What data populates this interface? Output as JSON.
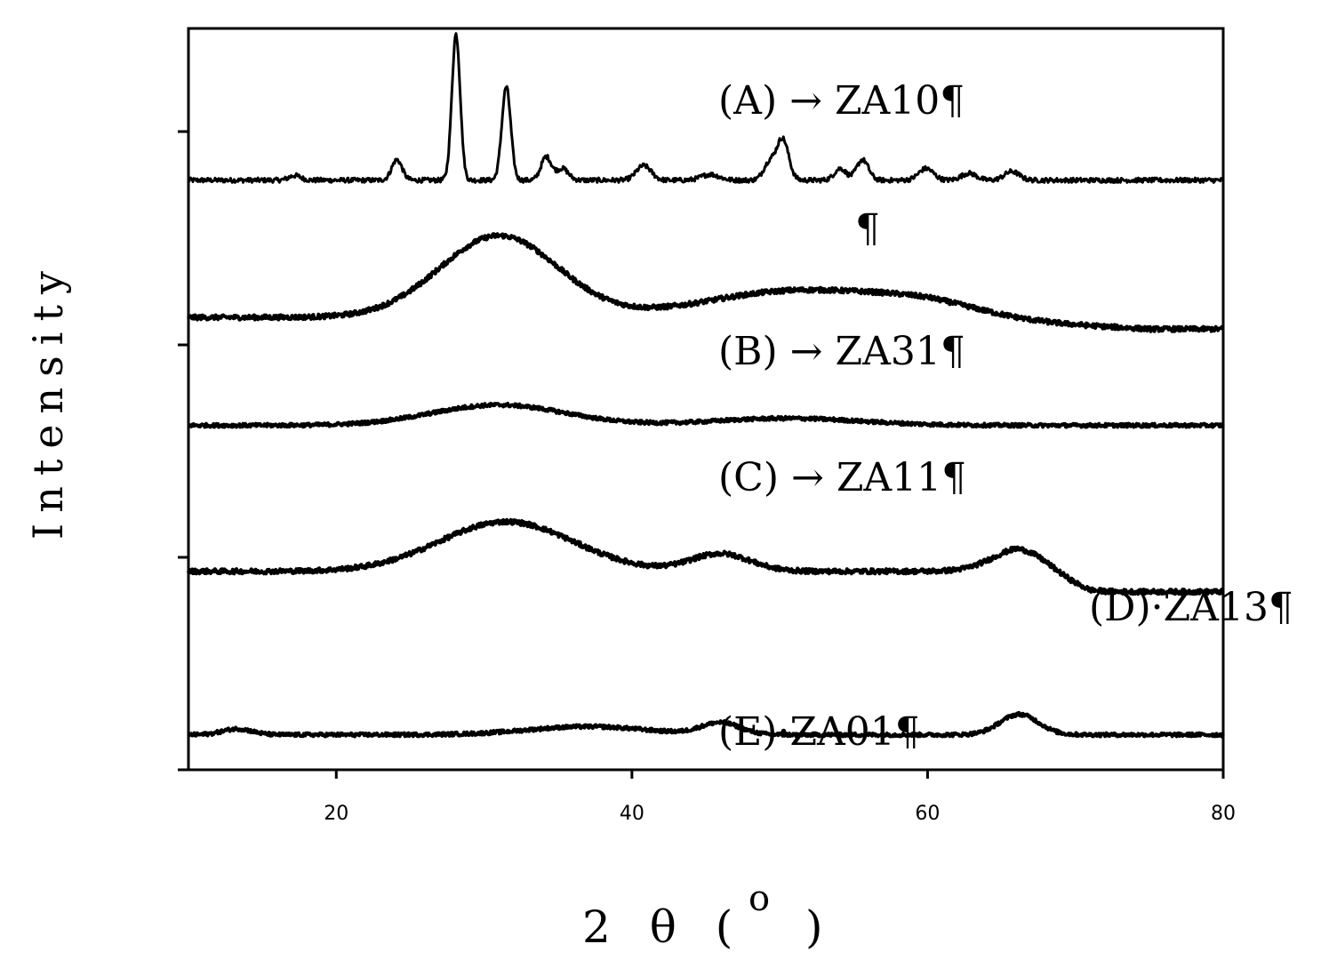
{
  "chart_data": {
    "type": "line",
    "title": "",
    "xlabel": "2 θ (",
    "xlabel_degree": "o",
    "xlabel_close": ")",
    "ylabel": "Intensity",
    "xlim": [
      10,
      80
    ],
    "xticks": [
      20,
      40,
      60,
      80
    ],
    "yticks_labeled": false,
    "grid": false,
    "series": [
      {
        "name": "(A) → ZA10¶",
        "baseline": 0.29,
        "noise": 0.004,
        "peaks": [
          {
            "x": 17.2,
            "h": 0.008,
            "w": 0.4
          },
          {
            "x": 24.1,
            "h": 0.035,
            "w": 0.35
          },
          {
            "x": 28.1,
            "h": 0.25,
            "w": 0.28
          },
          {
            "x": 31.5,
            "h": 0.16,
            "w": 0.3
          },
          {
            "x": 34.2,
            "h": 0.04,
            "w": 0.35
          },
          {
            "x": 35.3,
            "h": 0.02,
            "w": 0.4
          },
          {
            "x": 40.8,
            "h": 0.025,
            "w": 0.5
          },
          {
            "x": 45.3,
            "h": 0.01,
            "w": 0.6
          },
          {
            "x": 49.3,
            "h": 0.03,
            "w": 0.4
          },
          {
            "x": 50.2,
            "h": 0.07,
            "w": 0.4
          },
          {
            "x": 54.1,
            "h": 0.02,
            "w": 0.4
          },
          {
            "x": 55.6,
            "h": 0.035,
            "w": 0.4
          },
          {
            "x": 59.9,
            "h": 0.02,
            "w": 0.5
          },
          {
            "x": 62.8,
            "h": 0.012,
            "w": 0.5
          },
          {
            "x": 65.7,
            "h": 0.015,
            "w": 0.5
          }
        ]
      },
      {
        "name": "(B) → ZA31¶",
        "baseline": 0.055,
        "noise": 0.004,
        "peaks": [
          {
            "x": 31.0,
            "h": 0.14,
            "w": 4.0
          },
          {
            "x": 51.0,
            "h": 0.045,
            "w": 6.0
          },
          {
            "x": 60.0,
            "h": 0.02,
            "w": 4.0
          }
        ]
      },
      {
        "name": "(C) → ZA11¶",
        "baseline": -0.13,
        "noise": 0.003,
        "peaks": [
          {
            "x": 31.0,
            "h": 0.035,
            "w": 4.5
          },
          {
            "x": 50.5,
            "h": 0.012,
            "w": 5.0
          }
        ]
      },
      {
        "name": "(D)·ZA13¶",
        "baseline": -0.38,
        "noise": 0.004,
        "peaks": [
          {
            "x": 31.5,
            "h": 0.085,
            "w": 4.5
          },
          {
            "x": 46.0,
            "h": 0.03,
            "w": 2.0
          },
          {
            "x": 66.5,
            "h": 0.04,
            "w": 2.0
          }
        ]
      },
      {
        "name": "(E)·ZA01¶",
        "baseline": -0.66,
        "noise": 0.003,
        "peaks": [
          {
            "x": 13.3,
            "h": 0.01,
            "w": 1.0
          },
          {
            "x": 37.0,
            "h": 0.014,
            "w": 4.0
          },
          {
            "x": 46.0,
            "h": 0.02,
            "w": 1.3
          },
          {
            "x": 66.2,
            "h": 0.035,
            "w": 1.3
          }
        ]
      }
    ]
  }
}
